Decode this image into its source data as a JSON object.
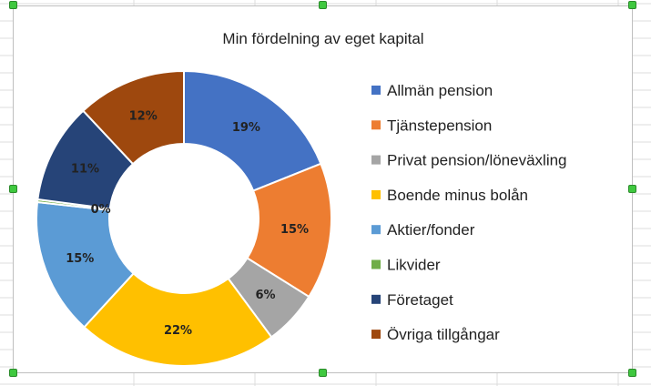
{
  "chart_data": {
    "type": "pie",
    "variant": "doughnut",
    "title": "Min fördelning av eget kapital",
    "legend_position": "right",
    "categories": [
      "Allmän pension",
      "Tjänstepension",
      "Privat pension/löneväxling",
      "Boende minus bolån",
      "Aktier/fonder",
      "Likvider",
      "Företaget",
      "Övriga tillgångar"
    ],
    "values": [
      19,
      15,
      6,
      22,
      15,
      0.3,
      11,
      12
    ],
    "data_labels": [
      "19%",
      "15%",
      "6%",
      "22%",
      "15%",
      "0%",
      "11%",
      "12%"
    ],
    "colors": [
      "#4472C4",
      "#ED7D31",
      "#A5A5A5",
      "#FFC000",
      "#5B9BD5",
      "#70AD47",
      "#264478",
      "#9E480E"
    ]
  }
}
